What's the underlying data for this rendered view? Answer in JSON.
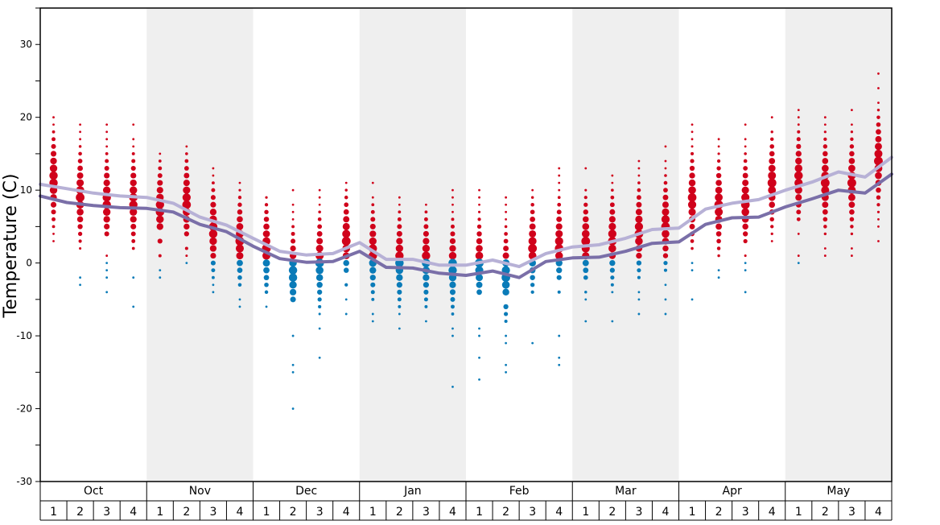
{
  "chart_data": {
    "type": "scatter",
    "ylabel": "Temperature (C)",
    "ylim": [
      -30,
      35
    ],
    "y_ticks": [
      30,
      20,
      10,
      0,
      -10,
      -20,
      -30
    ],
    "months": [
      "Oct",
      "Nov",
      "Dec",
      "Jan",
      "Feb",
      "Mar",
      "Apr",
      "May"
    ],
    "weeks": [
      "1",
      "2",
      "3",
      "4"
    ],
    "shaded_months": [
      "Nov",
      "Jan",
      "Mar",
      "May"
    ],
    "colors": {
      "warm": "#d0021b",
      "cold": "#0a7bb8",
      "line_light": "#b7b1d6",
      "line_dark": "#7a6fa8",
      "shade": "#efefef"
    },
    "series": [
      {
        "values": [
          10.8,
          10.2,
          9.6,
          9.2,
          9.0,
          8.2,
          6.3,
          5.2,
          3.4,
          1.6,
          1.1,
          1.3,
          2.8,
          0.5,
          0.5,
          -0.3,
          -0.3,
          0.4,
          -0.5,
          1.3,
          2.2,
          2.5,
          3.4,
          4.6,
          4.8,
          7.4,
          8.2,
          8.7,
          10.0,
          11.1,
          12.5,
          11.8,
          14.5
        ]
      },
      {
        "values": [
          9.2,
          8.3,
          7.9,
          7.6,
          7.5,
          7.0,
          5.3,
          4.3,
          2.3,
          0.6,
          0.1,
          0.2,
          1.6,
          -0.6,
          -0.7,
          -1.4,
          -1.7,
          -1.1,
          -2.0,
          0.2,
          0.7,
          0.8,
          1.6,
          2.7,
          2.9,
          5.3,
          6.2,
          6.3,
          7.7,
          8.8,
          10.0,
          9.6,
          12.2
        ]
      }
    ],
    "dots": [
      {
        "month": "Oct",
        "week": "1",
        "temps": [
          20,
          19,
          18,
          17,
          16,
          15,
          14,
          13,
          12,
          11,
          10,
          9,
          8,
          7,
          6,
          5,
          4,
          3
        ]
      },
      {
        "month": "Oct",
        "week": "2",
        "temps": [
          19,
          18,
          17,
          16,
          15,
          14,
          13,
          12,
          11,
          10,
          9,
          8,
          7,
          6,
          5,
          4,
          3,
          2,
          -2,
          -3
        ]
      },
      {
        "month": "Oct",
        "week": "3",
        "temps": [
          19,
          18,
          17,
          16,
          15,
          14,
          13,
          12,
          11,
          10,
          9,
          8,
          7,
          6,
          5,
          4,
          1,
          0,
          -1,
          -2,
          -4
        ]
      },
      {
        "month": "Oct",
        "week": "4",
        "temps": [
          19,
          17,
          16,
          15,
          14,
          13,
          12,
          11,
          10,
          9,
          8,
          7,
          6,
          5,
          4,
          3,
          2,
          -2,
          -6
        ]
      },
      {
        "month": "Nov",
        "week": "1",
        "temps": [
          15,
          14,
          13,
          12,
          11,
          10,
          9,
          8,
          7,
          6,
          5,
          3,
          1,
          -1,
          -2
        ]
      },
      {
        "month": "Nov",
        "week": "2",
        "temps": [
          16,
          15,
          14,
          13,
          12,
          11,
          10,
          9,
          8,
          7,
          6,
          5,
          4,
          2,
          1,
          0
        ]
      },
      {
        "month": "Nov",
        "week": "3",
        "temps": [
          13,
          12,
          11,
          10,
          9,
          8,
          7,
          6,
          5,
          4,
          3,
          2,
          1,
          0,
          -1,
          -2,
          -3,
          -4
        ]
      },
      {
        "month": "Nov",
        "week": "4",
        "temps": [
          11,
          10,
          9,
          8,
          7,
          6,
          5,
          4,
          3,
          2,
          1,
          0,
          -1,
          -2,
          -3,
          -5,
          -6
        ]
      },
      {
        "month": "Dec",
        "week": "1",
        "temps": [
          9,
          8,
          7,
          6,
          5,
          4,
          3,
          2,
          1,
          0,
          -1,
          -2,
          -3,
          -4,
          -6
        ]
      },
      {
        "month": "Dec",
        "week": "2",
        "temps": [
          10,
          8,
          7,
          6,
          5,
          4,
          3,
          2,
          1,
          0,
          -1,
          -2,
          -3,
          -4,
          -5,
          -10,
          -14,
          -15,
          -20
        ]
      },
      {
        "month": "Dec",
        "week": "3",
        "temps": [
          10,
          9,
          8,
          7,
          6,
          5,
          4,
          3,
          2,
          1,
          0,
          -1,
          -2,
          -3,
          -4,
          -5,
          -6,
          -7,
          -9,
          -13
        ]
      },
      {
        "month": "Dec",
        "week": "4",
        "temps": [
          11,
          10,
          9,
          8,
          7,
          6,
          5,
          4,
          3,
          2,
          1,
          0,
          -1,
          -3,
          -5,
          -7
        ]
      },
      {
        "month": "Jan",
        "week": "1",
        "temps": [
          11,
          9,
          8,
          7,
          6,
          5,
          4,
          3,
          2,
          1,
          0,
          -1,
          -2,
          -3,
          -4,
          -5,
          -7,
          -8
        ]
      },
      {
        "month": "Jan",
        "week": "2",
        "temps": [
          9,
          8,
          7,
          6,
          5,
          4,
          3,
          2,
          1,
          0,
          -1,
          -2,
          -3,
          -4,
          -5,
          -6,
          -7,
          -9
        ]
      },
      {
        "month": "Jan",
        "week": "3",
        "temps": [
          8,
          7,
          6,
          5,
          4,
          3,
          2,
          1,
          0,
          -1,
          -2,
          -3,
          -4,
          -5,
          -6,
          -8
        ]
      },
      {
        "month": "Jan",
        "week": "4",
        "temps": [
          10,
          9,
          8,
          7,
          6,
          5,
          4,
          3,
          2,
          1,
          0,
          -1,
          -2,
          -3,
          -4,
          -5,
          -6,
          -7,
          -9,
          -10,
          -17
        ]
      },
      {
        "month": "Feb",
        "week": "1",
        "temps": [
          10,
          9,
          8,
          7,
          6,
          5,
          4,
          3,
          2,
          1,
          0,
          -1,
          -2,
          -3,
          -4,
          -9,
          -10,
          -13,
          -16
        ]
      },
      {
        "month": "Feb",
        "week": "2",
        "temps": [
          9,
          8,
          7,
          6,
          5,
          4,
          3,
          2,
          1,
          0,
          -1,
          -2,
          -3,
          -4,
          -6,
          -7,
          -8,
          -10,
          -11,
          -14,
          -15
        ]
      },
      {
        "month": "Feb",
        "week": "3",
        "temps": [
          10,
          9,
          8,
          7,
          6,
          5,
          4,
          3,
          2,
          1,
          0,
          -1,
          -2,
          -3,
          -4,
          -11
        ]
      },
      {
        "month": "Feb",
        "week": "4",
        "temps": [
          13,
          12,
          11,
          10,
          9,
          8,
          7,
          6,
          5,
          4,
          3,
          2,
          1,
          0,
          -1,
          -2,
          -4,
          -10,
          -13,
          -14
        ]
      },
      {
        "month": "Mar",
        "week": "1",
        "temps": [
          13,
          10,
          9,
          8,
          7,
          6,
          5,
          4,
          3,
          2,
          1,
          0,
          -1,
          -2,
          -4,
          -5,
          -8
        ]
      },
      {
        "month": "Mar",
        "week": "2",
        "temps": [
          12,
          11,
          10,
          9,
          8,
          7,
          6,
          5,
          4,
          3,
          2,
          1,
          0,
          -1,
          -2,
          -3,
          -4,
          -8
        ]
      },
      {
        "month": "Mar",
        "week": "3",
        "temps": [
          14,
          13,
          12,
          11,
          10,
          9,
          8,
          7,
          6,
          5,
          4,
          3,
          2,
          1,
          0,
          -1,
          -2,
          -4,
          -5,
          -7
        ]
      },
      {
        "month": "Mar",
        "week": "4",
        "temps": [
          16,
          14,
          13,
          12,
          11,
          10,
          9,
          8,
          7,
          6,
          5,
          4,
          3,
          2,
          1,
          0,
          -1,
          -3,
          -5,
          -7
        ]
      },
      {
        "month": "Apr",
        "week": "1",
        "temps": [
          19,
          18,
          17,
          16,
          15,
          14,
          13,
          12,
          11,
          10,
          9,
          8,
          7,
          6,
          5,
          4,
          3,
          2,
          0,
          -1,
          -5
        ]
      },
      {
        "month": "Apr",
        "week": "2",
        "temps": [
          17,
          16,
          15,
          14,
          13,
          12,
          11,
          10,
          9,
          8,
          7,
          6,
          5,
          4,
          3,
          2,
          1,
          -1,
          -2
        ]
      },
      {
        "month": "Apr",
        "week": "3",
        "temps": [
          19,
          17,
          16,
          15,
          14,
          13,
          12,
          11,
          10,
          9,
          8,
          7,
          6,
          5,
          4,
          3,
          1,
          0,
          -1,
          -4
        ]
      },
      {
        "month": "Apr",
        "week": "4",
        "temps": [
          20,
          18,
          17,
          16,
          15,
          14,
          13,
          12,
          11,
          10,
          9,
          8,
          7,
          6,
          5,
          4,
          3
        ]
      },
      {
        "month": "May",
        "week": "1",
        "temps": [
          21,
          20,
          19,
          18,
          17,
          16,
          15,
          14,
          13,
          12,
          11,
          10,
          9,
          8,
          7,
          6,
          4,
          1,
          0
        ]
      },
      {
        "month": "May",
        "week": "2",
        "temps": [
          20,
          19,
          18,
          17,
          16,
          15,
          14,
          13,
          12,
          11,
          10,
          9,
          8,
          7,
          6,
          5,
          4,
          2,
          1
        ]
      },
      {
        "month": "May",
        "week": "3",
        "temps": [
          21,
          19,
          18,
          17,
          16,
          15,
          14,
          13,
          12,
          11,
          10,
          9,
          8,
          7,
          6,
          5,
          4,
          2,
          1
        ]
      },
      {
        "month": "May",
        "week": "4",
        "temps": [
          26,
          24,
          22,
          21,
          20,
          19,
          18,
          17,
          16,
          15,
          14,
          13,
          12,
          11,
          10,
          9,
          8,
          7,
          6,
          5,
          3
        ]
      }
    ]
  }
}
